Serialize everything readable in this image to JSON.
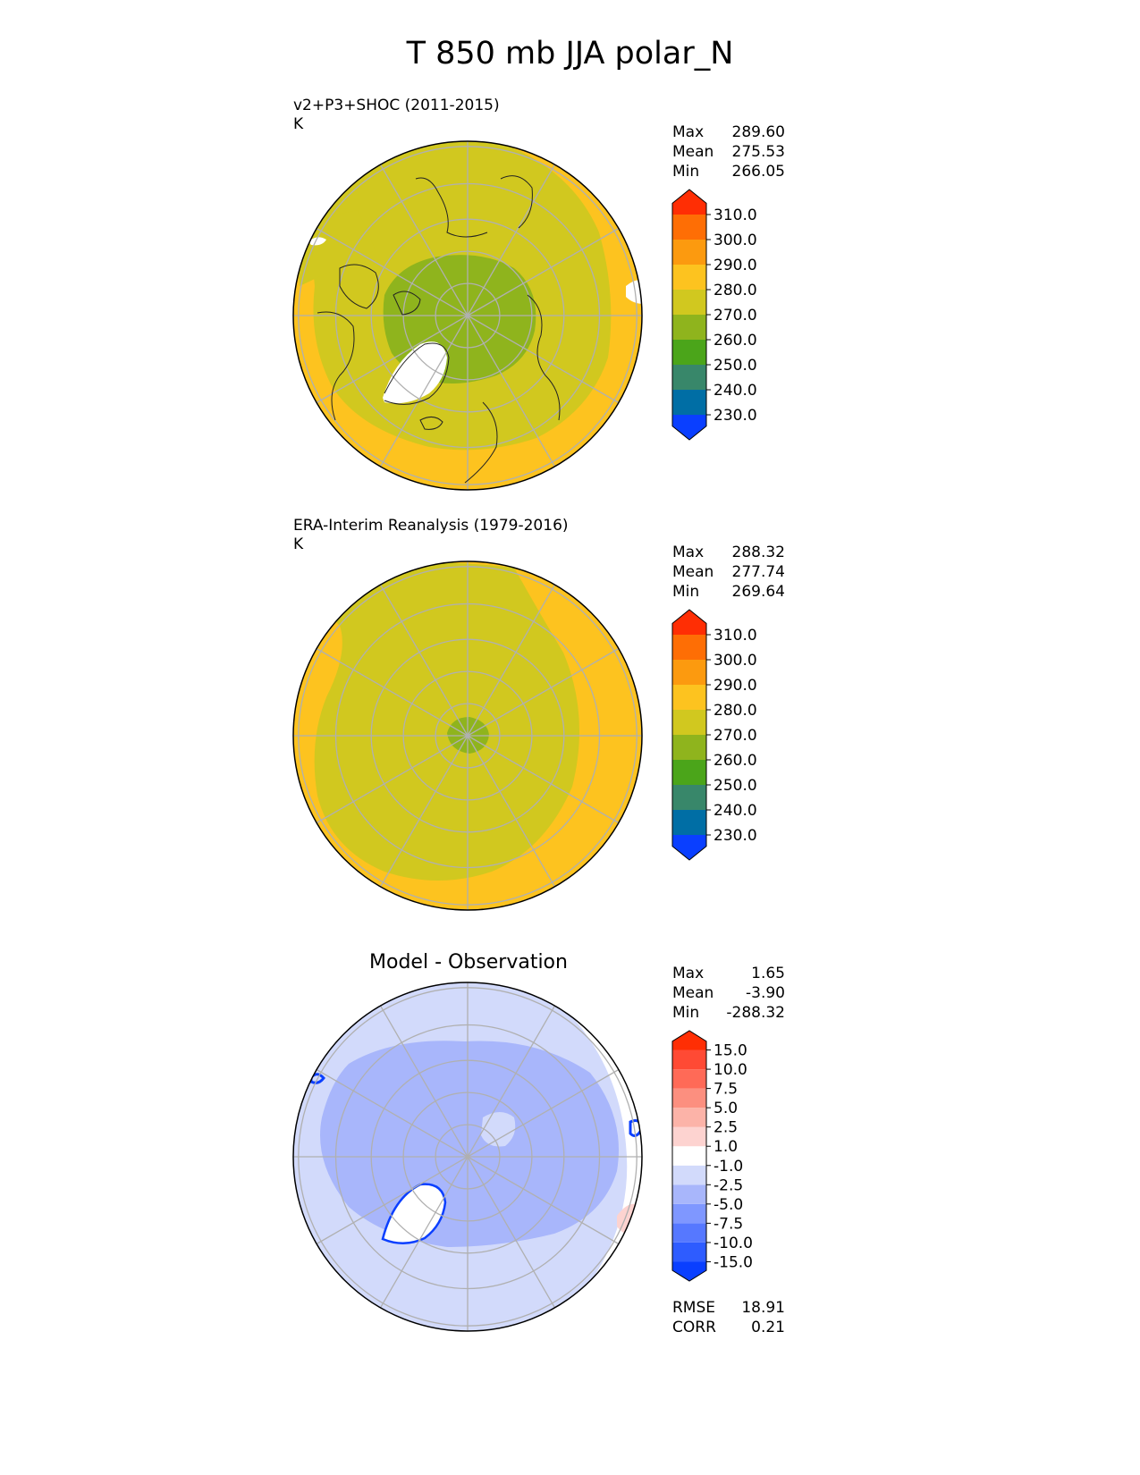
{
  "title": "T 850 mb JJA polar_N",
  "panels": [
    {
      "label_line1": "v2+P3+SHOC (2011-2015)",
      "label_line2": "K",
      "stats": [
        {
          "k": "Max",
          "v": "289.60"
        },
        {
          "k": "Mean",
          "v": "275.53"
        },
        {
          "k": "Min",
          "v": "266.05"
        }
      ]
    },
    {
      "label_line1": "ERA-Interim Reanalysis (1979-2016)",
      "label_line2": "K",
      "stats": [
        {
          "k": "Max",
          "v": "288.32"
        },
        {
          "k": "Mean",
          "v": "277.74"
        },
        {
          "k": "Min",
          "v": "269.64"
        }
      ]
    },
    {
      "center_title": "Model - Observation",
      "stats": [
        {
          "k": "Max",
          "v": "1.65"
        },
        {
          "k": "Mean",
          "v": "-3.90"
        },
        {
          "k": "Min",
          "v": "-288.32"
        }
      ],
      "metrics": [
        {
          "k": "RMSE",
          "v": "18.91"
        },
        {
          "k": "CORR",
          "v": "0.21"
        }
      ]
    }
  ],
  "chart_data": [
    {
      "type": "heatmap",
      "projection": "north polar stereographic",
      "variable": "T 850 mb",
      "season": "JJA",
      "units": "K",
      "colorbar": {
        "levels": [
          230,
          240,
          250,
          260,
          270,
          280,
          290,
          300,
          310
        ],
        "tick_labels": [
          "230.0",
          "240.0",
          "250.0",
          "260.0",
          "270.0",
          "280.0",
          "290.0",
          "300.0",
          "310.0"
        ],
        "colors": [
          "#0a3fff",
          "#006ea5",
          "#38876a",
          "#4ba51a",
          "#8fb41d",
          "#d1c81f",
          "#fdc31f",
          "#fc9a0f",
          "#fe6e05",
          "#ff2e04"
        ],
        "extend": "both"
      },
      "regions": [
        {
          "value_range": "280-290",
          "area": "outer mid-latitudes"
        },
        {
          "value_range": "270-280",
          "area": "subarctic belt"
        },
        {
          "value_range": "260-270",
          "area": "central Arctic"
        }
      ]
    },
    {
      "type": "heatmap",
      "projection": "north polar stereographic",
      "variable": "T 850 mb",
      "season": "JJA",
      "units": "K",
      "colorbar": {
        "levels": [
          230,
          240,
          250,
          260,
          270,
          280,
          290,
          300,
          310
        ],
        "tick_labels": [
          "230.0",
          "240.0",
          "250.0",
          "260.0",
          "270.0",
          "280.0",
          "290.0",
          "300.0",
          "310.0"
        ],
        "colors": [
          "#0a3fff",
          "#006ea5",
          "#38876a",
          "#4ba51a",
          "#8fb41d",
          "#d1c81f",
          "#fdc31f",
          "#fc9a0f",
          "#fe6e05",
          "#ff2e04"
        ],
        "extend": "both"
      },
      "regions": [
        {
          "value_range": "280-290",
          "area": "outer mid-latitudes"
        },
        {
          "value_range": "270-280",
          "area": "Arctic ocean and land"
        },
        {
          "value_range": "260-270",
          "area": "near pole"
        }
      ]
    },
    {
      "type": "heatmap",
      "projection": "north polar stereographic",
      "variable": "T 850 mb difference",
      "colorbar": {
        "levels": [
          -15,
          -10,
          -7.5,
          -5,
          -2.5,
          -1,
          1,
          2.5,
          5,
          7.5,
          10,
          15
        ],
        "tick_labels": [
          "-15.0",
          "-10.0",
          "-7.5",
          "-5.0",
          "-2.5",
          "-1.0",
          "1.0",
          "2.5",
          "5.0",
          "7.5",
          "10.0",
          "15.0"
        ],
        "colors": [
          "#0a3fff",
          "#2e5cff",
          "#5678ff",
          "#7f97ff",
          "#a8b6fb",
          "#d2dafb",
          "#ffffff",
          "#fdd3d0",
          "#fcb3a8",
          "#fc8f7f",
          "#ff6a57",
          "#ff4a34",
          "#ff2e04"
        ],
        "extend": "both"
      },
      "regions": [
        {
          "value_range": "-2.5 to -1",
          "area": "outer ring"
        },
        {
          "value_range": "-5 to -2.5",
          "area": "Arctic basin"
        },
        {
          "value_range": "-1 to 1",
          "area": "North Pacific sector"
        }
      ]
    }
  ]
}
